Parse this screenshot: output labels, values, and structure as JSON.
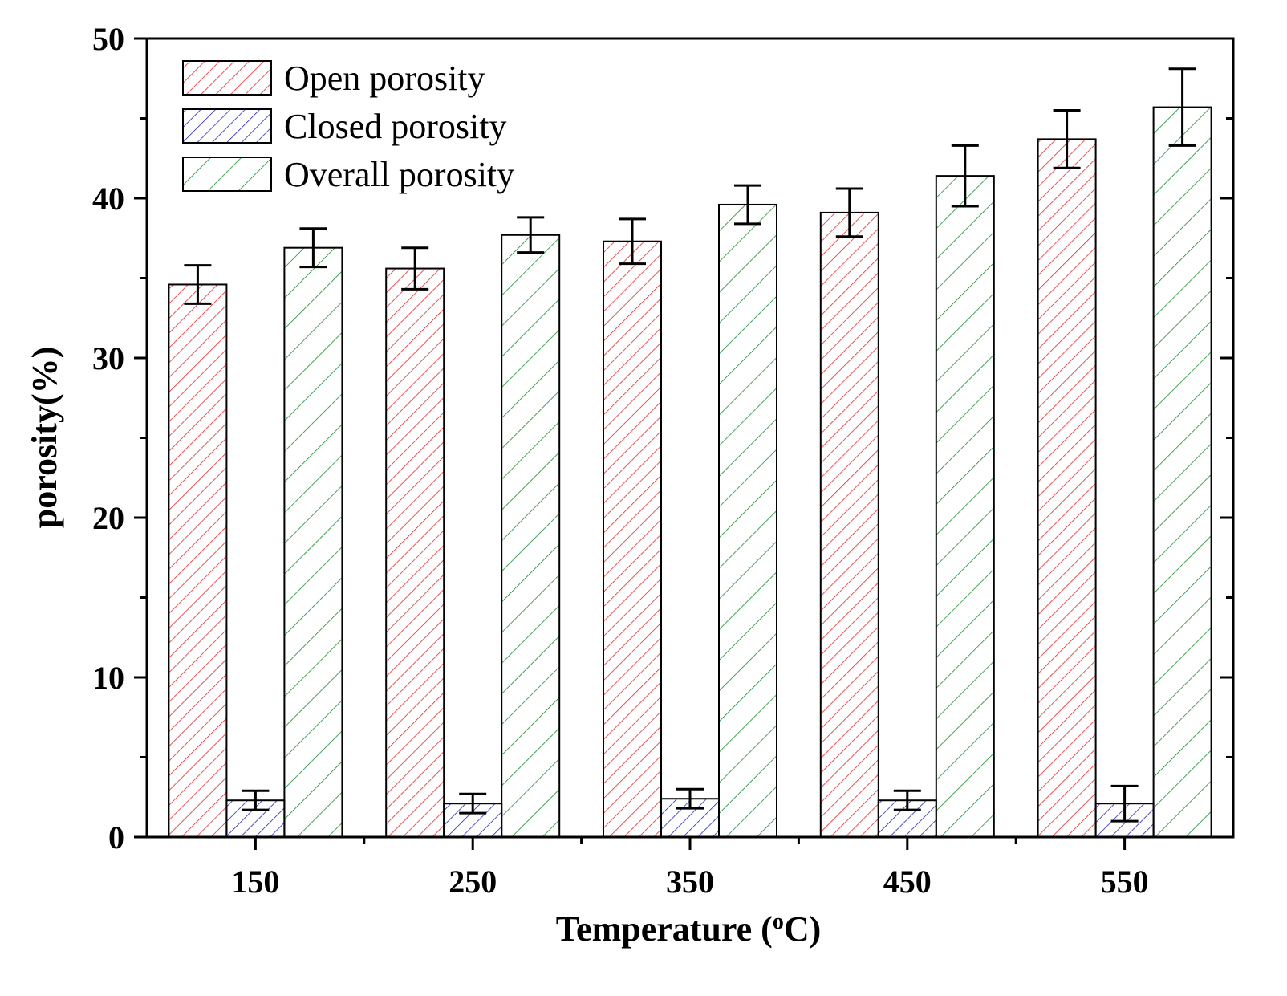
{
  "chart_data": {
    "type": "bar",
    "xlabel_main": "Temperature (",
    "xlabel_sup": "o",
    "xlabel_end": "C)",
    "ylabel": "porosity(%)",
    "categories": [
      "150",
      "250",
      "350",
      "450",
      "550"
    ],
    "ylim": [
      0,
      50
    ],
    "yticks": [
      "0",
      "10",
      "20",
      "30",
      "40",
      "50"
    ],
    "legend_position": "top-left",
    "grid": false,
    "series": [
      {
        "name": "Open porosity",
        "color": "#e8262a",
        "hatch": "dense-diagonal",
        "values": [
          34.6,
          35.6,
          37.3,
          39.1,
          43.7
        ],
        "errors": [
          1.2,
          1.3,
          1.4,
          1.5,
          1.8
        ]
      },
      {
        "name": "Closed porosity",
        "color": "#2424b8",
        "hatch": "dense-diagonal",
        "values": [
          2.3,
          2.1,
          2.4,
          2.3,
          2.1
        ],
        "errors": [
          0.6,
          0.6,
          0.6,
          0.6,
          1.1
        ]
      },
      {
        "name": "Overall porosity",
        "color": "#1a8a2e",
        "hatch": "sparse-diagonal",
        "values": [
          36.9,
          37.7,
          39.6,
          41.4,
          45.7
        ],
        "errors": [
          1.2,
          1.1,
          1.2,
          1.9,
          2.4
        ]
      }
    ]
  }
}
